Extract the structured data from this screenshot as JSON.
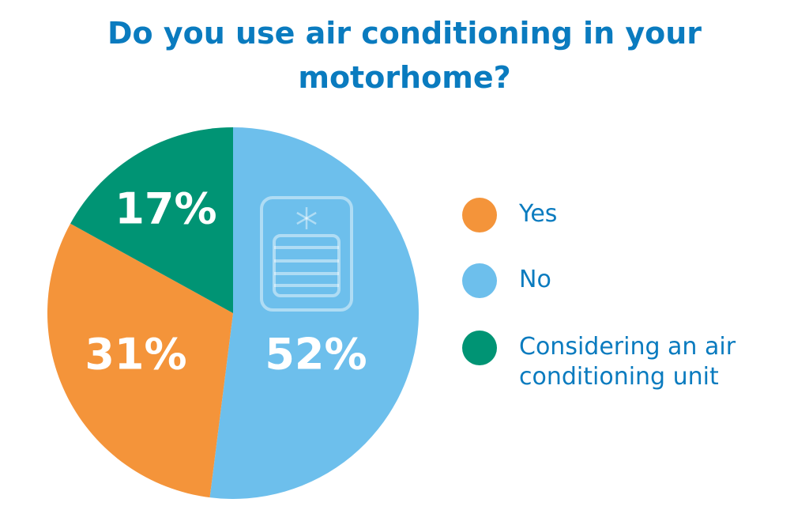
{
  "chart_data": {
    "type": "pie",
    "title": "Do you use air conditioning in your motorhome?",
    "categories": [
      "Yes",
      "No",
      "Considering an air conditioning unit"
    ],
    "values": [
      31,
      52,
      17
    ],
    "value_labels": [
      "31%",
      "52%",
      "17%"
    ],
    "colors": [
      "#f4943a",
      "#6dbfec",
      "#009474"
    ]
  }
}
